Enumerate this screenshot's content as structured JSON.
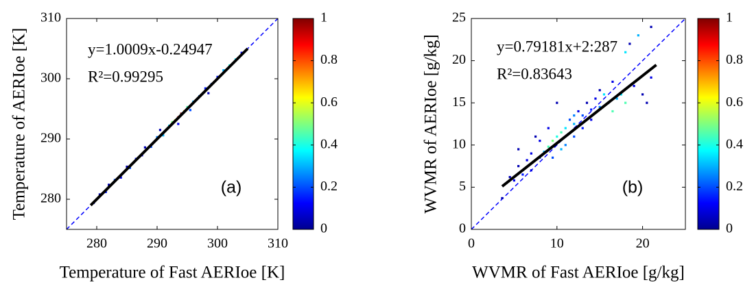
{
  "chart_data": [
    {
      "type": "scatter",
      "x_label": "Temperature of Fast AERIoe [K]",
      "y_label": "Temperature of AERIoe [K]",
      "equation": "y=1.0009x-0.24947",
      "r_squared": "R²=0.99295",
      "panel_label": "(a)",
      "xlim": [
        275,
        310
      ],
      "ylim": [
        275,
        310
      ],
      "xticks": [
        280,
        290,
        300,
        310
      ],
      "yticks": [
        280,
        290,
        300,
        310
      ],
      "x": [
        279.5,
        280.5,
        281.5,
        282,
        283,
        284,
        285,
        285.5,
        286.5,
        287.5,
        288,
        289,
        290,
        290.5,
        291,
        292,
        292.5,
        293,
        293.5,
        294,
        294.5,
        295,
        295.5,
        296,
        297,
        298,
        299,
        300,
        301,
        302,
        303,
        304,
        293.5,
        298.5
      ],
      "y": [
        279.4,
        280.8,
        281.2,
        282.4,
        283.2,
        283.6,
        285.4,
        285.2,
        286.7,
        287.3,
        288.6,
        288.7,
        290.3,
        291.5,
        290.6,
        292.2,
        292.8,
        293.1,
        293.6,
        294.2,
        294.6,
        295.3,
        294.8,
        296.2,
        297.1,
        298.4,
        299.1,
        300.3,
        301.4,
        302.2,
        303.2,
        304.3,
        292.5,
        297.6
      ],
      "density": [
        0.1,
        0.05,
        0.15,
        0.05,
        0.2,
        0.1,
        0.05,
        0.2,
        0.15,
        0.1,
        0.05,
        0.2,
        0.25,
        0.05,
        0.3,
        0.35,
        0.5,
        0.6,
        0.85,
        1,
        0.7,
        0.45,
        0.2,
        0.3,
        0.25,
        0.15,
        0.2,
        0.15,
        0.3,
        0.4,
        0.35,
        0.1,
        0.1,
        0.05
      ],
      "fit_line": {
        "x": [
          279,
          305
        ],
        "y": [
          279,
          305
        ],
        "color": "#000000"
      },
      "reference_line": {
        "color": "#0000ff"
      },
      "colorbar": {
        "lim": [
          0,
          1
        ],
        "ticks": [
          0,
          0.2,
          0.4,
          0.6,
          0.8,
          1
        ],
        "colormap": "jet"
      }
    },
    {
      "type": "scatter",
      "x_label": "WVMR of Fast AERIoe [g/kg]",
      "y_label": "WVMR of AERIoe [g/kg]",
      "equation": "y=0.79181x+2:287",
      "r_squared": "R²=0.83643",
      "panel_label": "(b)",
      "xlim": [
        0,
        25
      ],
      "ylim": [
        0,
        25
      ],
      "xticks": [
        0,
        10,
        20
      ],
      "yticks": [
        0,
        5,
        10,
        15,
        20,
        25
      ],
      "x": [
        3.6,
        4.5,
        5,
        5.5,
        5.5,
        6,
        6.5,
        7,
        7,
        7.5,
        8,
        8,
        8.5,
        9,
        9,
        9.5,
        9.5,
        10,
        10,
        10.5,
        10.5,
        11,
        11,
        11.5,
        12,
        12,
        12.5,
        13,
        13,
        13.5,
        14,
        14,
        14.5,
        15,
        15,
        15.5,
        16,
        16.5,
        17,
        17.5,
        18,
        18,
        18.5,
        19,
        19.5,
        20,
        20.5,
        21,
        21,
        16.5,
        12
      ],
      "y": [
        3.7,
        6.2,
        5.8,
        7.5,
        9.5,
        6.5,
        8.2,
        7,
        9,
        11,
        8.5,
        10.5,
        9.2,
        9.8,
        12,
        10.5,
        8.5,
        11,
        15,
        11.5,
        9.5,
        12,
        10,
        13,
        12.5,
        11,
        14,
        13.5,
        12,
        15,
        14.2,
        13,
        15.5,
        16.5,
        14.5,
        16,
        15,
        17.5,
        15.5,
        16,
        15,
        21,
        22,
        17,
        23,
        16,
        15,
        24,
        18,
        14,
        13.5
      ],
      "density": [
        0.05,
        0.05,
        0.1,
        0.05,
        0.05,
        0.15,
        0.1,
        0.1,
        0.1,
        0.05,
        0.2,
        0.1,
        0.3,
        0.45,
        0.1,
        0.5,
        0.2,
        0.4,
        0.05,
        0.45,
        0.3,
        0.35,
        0.25,
        0.2,
        0.3,
        0.2,
        0.1,
        0.2,
        0.15,
        0.05,
        0.15,
        0.1,
        0.1,
        0.05,
        0.25,
        0.35,
        0.2,
        0.1,
        0.3,
        0.35,
        0.45,
        0.35,
        0.05,
        0.1,
        0.3,
        0.05,
        0.05,
        0.05,
        0.1,
        0.45,
        0.25
      ],
      "fit_line": {
        "x": [
          3.6,
          21.6
        ],
        "y": [
          5.1,
          19.5
        ],
        "color": "#000000"
      },
      "reference_line": {
        "color": "#0000ff"
      },
      "colorbar": {
        "lim": [
          0,
          1
        ],
        "ticks": [
          0,
          0.2,
          0.4,
          0.6,
          0.8,
          1
        ],
        "colormap": "jet"
      }
    }
  ]
}
